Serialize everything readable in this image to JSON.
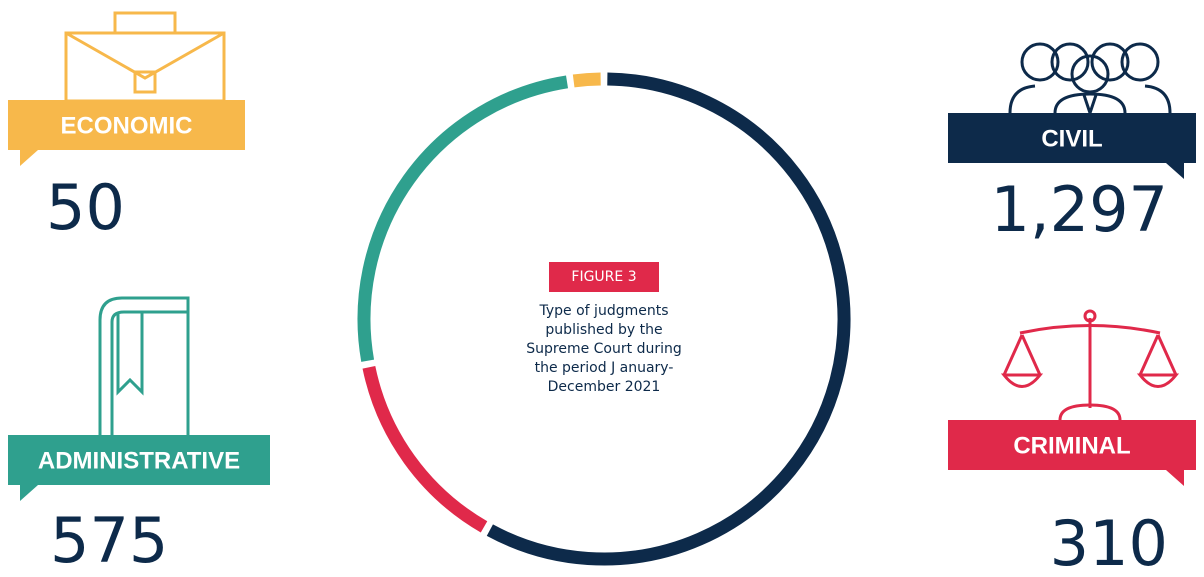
{
  "chart_data": {
    "type": "donut",
    "title": "FIGURE 3",
    "subtitle": "Type of judgments published by the Supreme Court during the period J anuary-December 2021",
    "categories": [
      "CIVIL",
      "CRIMINAL",
      "ADMINISTRATIVE",
      "ECONOMIC"
    ],
    "values": [
      1297,
      310,
      575,
      50
    ],
    "value_labels": [
      "1,297",
      "310",
      "575",
      "50"
    ],
    "colors": [
      "#0d2a4a",
      "#e0294a",
      "#2fa08e",
      "#f7b84b"
    ]
  }
}
